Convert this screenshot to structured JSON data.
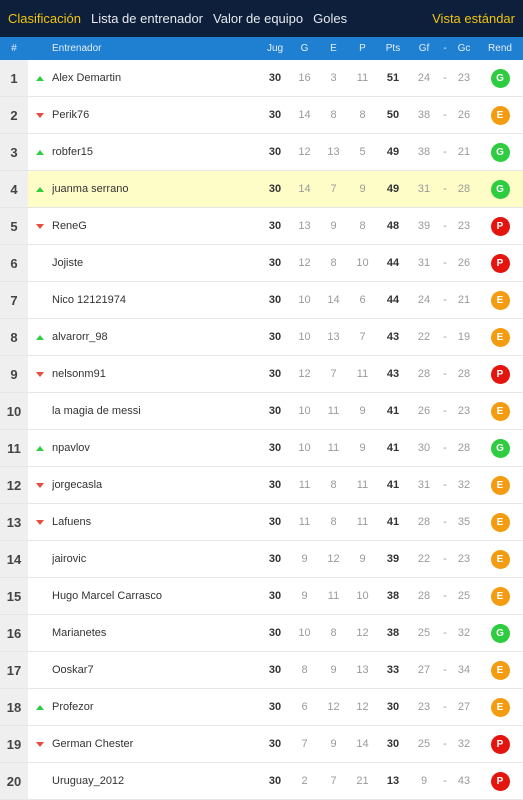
{
  "nav": {
    "tabs": [
      "Clasificación",
      "Lista de entrenador",
      "Valor de equipo",
      "Goles"
    ],
    "view_label": "Vista estándar"
  },
  "header": {
    "pos": "#",
    "name": "Entrenador",
    "jug": "Jug",
    "g": "G",
    "e": "E",
    "p": "P",
    "pts": "Pts",
    "gf": "Gf",
    "sep": "-",
    "gc": "Gc",
    "rend": "Rend"
  },
  "colors": {
    "G": "#2ecc40",
    "E": "#f39c12",
    "P": "#e3150e",
    "up": "#2ecc40",
    "down": "#e74c3c",
    "highlight": "#fffdc7"
  },
  "rows": [
    {
      "pos": "1",
      "trend": "up",
      "name": "Alex Demartin",
      "jug": "30",
      "g": "16",
      "e": "3",
      "p": "11",
      "pts": "51",
      "gf": "24",
      "gc": "23",
      "rend": "G"
    },
    {
      "pos": "2",
      "trend": "down",
      "name": "Perik76",
      "jug": "30",
      "g": "14",
      "e": "8",
      "p": "8",
      "pts": "50",
      "gf": "38",
      "gc": "26",
      "rend": "E"
    },
    {
      "pos": "3",
      "trend": "up",
      "name": "robfer15",
      "jug": "30",
      "g": "12",
      "e": "13",
      "p": "5",
      "pts": "49",
      "gf": "38",
      "gc": "21",
      "rend": "G"
    },
    {
      "pos": "4",
      "trend": "up",
      "name": "juanma serrano",
      "jug": "30",
      "g": "14",
      "e": "7",
      "p": "9",
      "pts": "49",
      "gf": "31",
      "gc": "28",
      "rend": "G",
      "highlight": true
    },
    {
      "pos": "5",
      "trend": "down",
      "name": "ReneG",
      "jug": "30",
      "g": "13",
      "e": "9",
      "p": "8",
      "pts": "48",
      "gf": "39",
      "gc": "23",
      "rend": "P"
    },
    {
      "pos": "6",
      "trend": "none",
      "name": "Jojiste",
      "jug": "30",
      "g": "12",
      "e": "8",
      "p": "10",
      "pts": "44",
      "gf": "31",
      "gc": "26",
      "rend": "P"
    },
    {
      "pos": "7",
      "trend": "none",
      "name": "Nico 12121974",
      "jug": "30",
      "g": "10",
      "e": "14",
      "p": "6",
      "pts": "44",
      "gf": "24",
      "gc": "21",
      "rend": "E"
    },
    {
      "pos": "8",
      "trend": "up",
      "name": "alvarorr_98",
      "jug": "30",
      "g": "10",
      "e": "13",
      "p": "7",
      "pts": "43",
      "gf": "22",
      "gc": "19",
      "rend": "E"
    },
    {
      "pos": "9",
      "trend": "down",
      "name": "nelsonm91",
      "jug": "30",
      "g": "12",
      "e": "7",
      "p": "11",
      "pts": "43",
      "gf": "28",
      "gc": "28",
      "rend": "P"
    },
    {
      "pos": "10",
      "trend": "none",
      "name": "la magia de messi",
      "jug": "30",
      "g": "10",
      "e": "11",
      "p": "9",
      "pts": "41",
      "gf": "26",
      "gc": "23",
      "rend": "E"
    },
    {
      "pos": "11",
      "trend": "up",
      "name": "npavlov",
      "jug": "30",
      "g": "10",
      "e": "11",
      "p": "9",
      "pts": "41",
      "gf": "30",
      "gc": "28",
      "rend": "G"
    },
    {
      "pos": "12",
      "trend": "down",
      "name": "jorgecasla",
      "jug": "30",
      "g": "11",
      "e": "8",
      "p": "11",
      "pts": "41",
      "gf": "31",
      "gc": "32",
      "rend": "E"
    },
    {
      "pos": "13",
      "trend": "down",
      "name": "Lafuens",
      "jug": "30",
      "g": "11",
      "e": "8",
      "p": "11",
      "pts": "41",
      "gf": "28",
      "gc": "35",
      "rend": "E"
    },
    {
      "pos": "14",
      "trend": "none",
      "name": "jairovic",
      "jug": "30",
      "g": "9",
      "e": "12",
      "p": "9",
      "pts": "39",
      "gf": "22",
      "gc": "23",
      "rend": "E"
    },
    {
      "pos": "15",
      "trend": "none",
      "name": "Hugo Marcel Carrasco",
      "jug": "30",
      "g": "9",
      "e": "11",
      "p": "10",
      "pts": "38",
      "gf": "28",
      "gc": "25",
      "rend": "E"
    },
    {
      "pos": "16",
      "trend": "none",
      "name": "Marianetes",
      "jug": "30",
      "g": "10",
      "e": "8",
      "p": "12",
      "pts": "38",
      "gf": "25",
      "gc": "32",
      "rend": "G"
    },
    {
      "pos": "17",
      "trend": "none",
      "name": "Ooskar7",
      "jug": "30",
      "g": "8",
      "e": "9",
      "p": "13",
      "pts": "33",
      "gf": "27",
      "gc": "34",
      "rend": "E"
    },
    {
      "pos": "18",
      "trend": "up",
      "name": "Profezor",
      "jug": "30",
      "g": "6",
      "e": "12",
      "p": "12",
      "pts": "30",
      "gf": "23",
      "gc": "27",
      "rend": "E"
    },
    {
      "pos": "19",
      "trend": "down",
      "name": "German Chester",
      "jug": "30",
      "g": "7",
      "e": "9",
      "p": "14",
      "pts": "30",
      "gf": "25",
      "gc": "32",
      "rend": "P"
    },
    {
      "pos": "20",
      "trend": "none",
      "name": "Uruguay_2012",
      "jug": "30",
      "g": "2",
      "e": "7",
      "p": "21",
      "pts": "13",
      "gf": "9",
      "gc": "43",
      "rend": "P"
    }
  ]
}
